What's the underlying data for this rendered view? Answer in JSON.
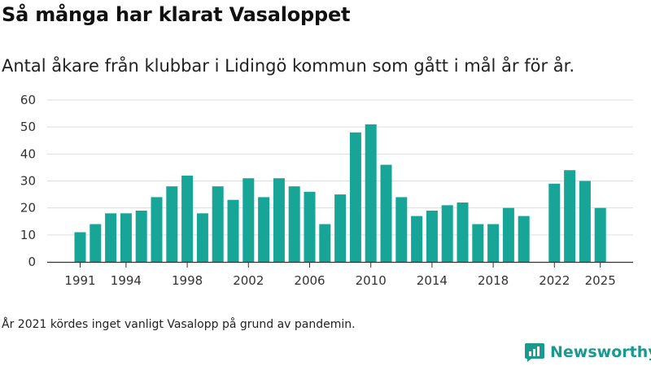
{
  "title": "Så många har klarat Vasaloppet",
  "subtitle": "Antal åkare från klubbar i Lidingö kommun som gått i mål år för år.",
  "note": "År 2021 kördes inget vanligt Vasalopp på grund av pandemin.",
  "brand": "Newsworthy",
  "colors": {
    "bar": "#16a596",
    "brand": "#1a9a8f"
  },
  "chart_data": {
    "type": "bar",
    "title": "Så många har klarat Vasaloppet",
    "xlabel": "",
    "ylabel": "",
    "ylim": [
      0,
      60
    ],
    "yticks": [
      0,
      10,
      20,
      30,
      40,
      50,
      60
    ],
    "xticks": [
      1991,
      1994,
      1998,
      2002,
      2006,
      2010,
      2014,
      2018,
      2022,
      2025
    ],
    "grid": true,
    "years": [
      1991,
      1992,
      1993,
      1994,
      1995,
      1996,
      1997,
      1998,
      1999,
      2000,
      2001,
      2002,
      2003,
      2004,
      2005,
      2006,
      2007,
      2008,
      2009,
      2010,
      2011,
      2012,
      2013,
      2014,
      2015,
      2016,
      2017,
      2018,
      2019,
      2020,
      2021,
      2022,
      2023,
      2024,
      2025
    ],
    "values": [
      11,
      14,
      18,
      18,
      19,
      24,
      28,
      32,
      18,
      28,
      23,
      31,
      24,
      31,
      28,
      26,
      14,
      25,
      48,
      51,
      36,
      24,
      17,
      19,
      21,
      22,
      14,
      14,
      20,
      17,
      null,
      29,
      34,
      30,
      20
    ]
  }
}
